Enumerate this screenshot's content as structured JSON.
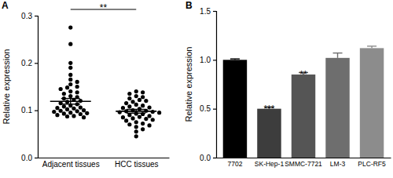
{
  "chart_data": [
    {
      "type": "scatter",
      "title": "A",
      "y_label": "Relative expression",
      "categories": [
        "Adjacent tissues",
        "HCC tissues"
      ],
      "points": [
        [
          0.275,
          0.24,
          0.2,
          0.19,
          0.175,
          0.165,
          0.16,
          0.155,
          0.15,
          0.148,
          0.145,
          0.14,
          0.138,
          0.135,
          0.13,
          0.128,
          0.125,
          0.122,
          0.12,
          0.118,
          0.115,
          0.113,
          0.11,
          0.108,
          0.106,
          0.105,
          0.104,
          0.102,
          0.1,
          0.099,
          0.098,
          0.097,
          0.095,
          0.094,
          0.093,
          0.092,
          0.09,
          0.088,
          0.087,
          0.085
        ],
        [
          0.14,
          0.138,
          0.135,
          0.13,
          0.128,
          0.125,
          0.122,
          0.12,
          0.118,
          0.115,
          0.112,
          0.11,
          0.108,
          0.106,
          0.105,
          0.103,
          0.1,
          0.099,
          0.098,
          0.097,
          0.096,
          0.095,
          0.093,
          0.092,
          0.09,
          0.088,
          0.086,
          0.085,
          0.083,
          0.082,
          0.08,
          0.078,
          0.075,
          0.072,
          0.07,
          0.068,
          0.065,
          0.06,
          0.055,
          0.045
        ]
      ],
      "means": [
        0.119,
        0.098
      ],
      "errors": [
        0.006,
        0.004
      ],
      "annotations": [
        "**"
      ],
      "marker": "circle",
      "color": "#000000",
      "ylim": [
        0,
        0.3
      ],
      "yticks": [
        {
          "value": 0,
          "label": "0.0"
        },
        0.1,
        0.2,
        0.3
      ],
      "grid": false
    },
    {
      "type": "bar",
      "title": "B",
      "y_label": "Relative expression",
      "categories": [
        "7702",
        "SK-Hep-1",
        "SMMC-7721",
        "LM-3",
        "PLC-RF5"
      ],
      "values": [
        1.0,
        0.5,
        0.85,
        1.02,
        1.12
      ],
      "errors": [
        0.01,
        0.015,
        0.02,
        0.05,
        0.02
      ],
      "annotations": [
        null,
        "***",
        "**",
        null,
        null
      ],
      "colors": [
        "#000000",
        "#3d3d3d",
        "#555555",
        "#6e6e6e",
        "#8c8c8c"
      ],
      "ylim": [
        0,
        1.5
      ],
      "yticks": [
        {
          "value": 0,
          "label": "0.0"
        },
        0.5,
        {
          "value": 1,
          "label": "1.0"
        },
        1.5
      ],
      "grid": false
    }
  ]
}
